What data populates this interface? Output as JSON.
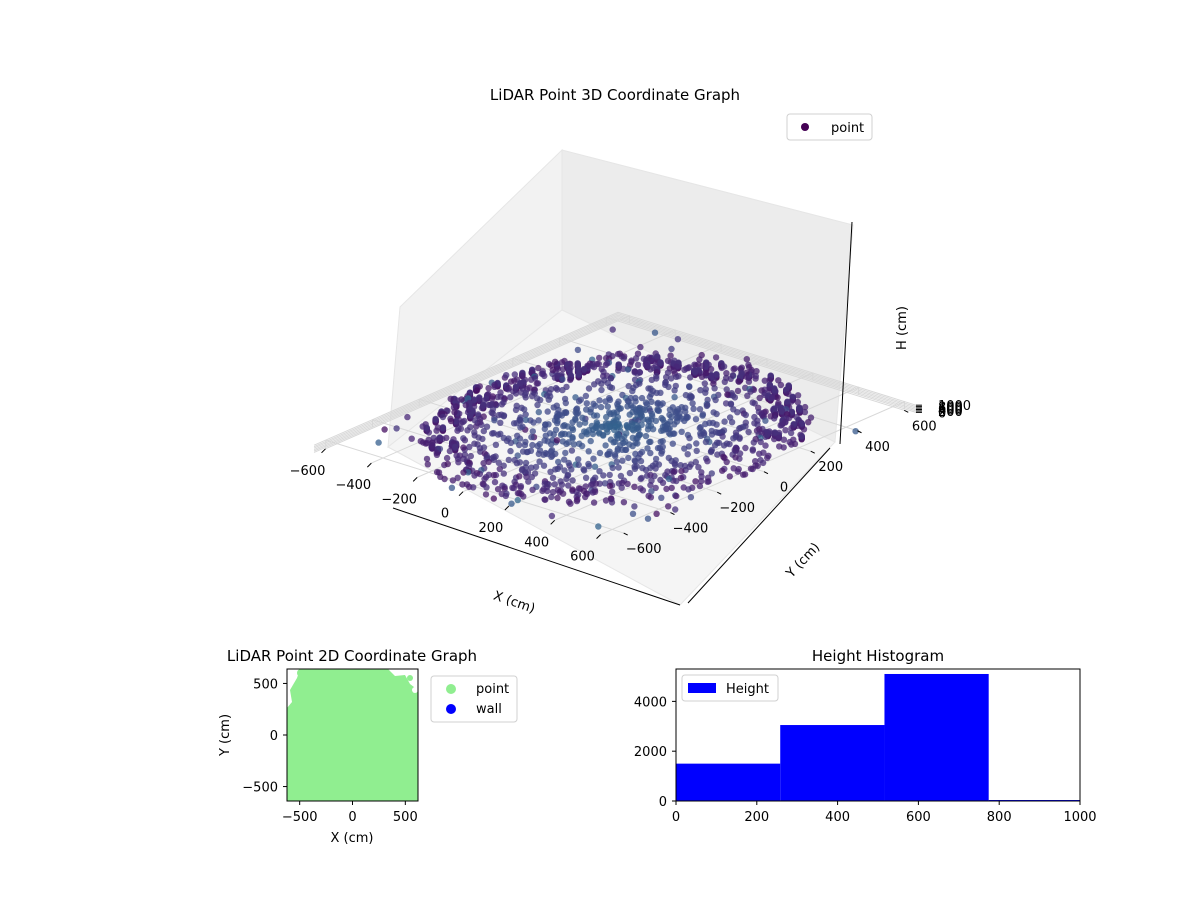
{
  "chart_data": [
    {
      "type": "scatter",
      "projection": "3d",
      "title": "LiDAR Point 3D Coordinate Graph",
      "xlabel": "X (cm)",
      "ylabel": "Y (cm)",
      "zlabel": "H (cm)",
      "xlim": [
        -650,
        650
      ],
      "ylim": [
        -650,
        650
      ],
      "zlim": [
        0,
        1000
      ],
      "z_inverted": true,
      "xticks": [
        -600,
        -400,
        -200,
        0,
        200,
        400,
        600
      ],
      "yticks": [
        -600,
        -400,
        -200,
        0,
        200,
        400,
        600
      ],
      "zticks": [
        0,
        200,
        400,
        600,
        800,
        1000
      ],
      "grid": true,
      "legend": {
        "position": "top-right",
        "entries": [
          "point"
        ]
      },
      "colormap": "viridis",
      "colormap_stops": [
        "#440154",
        "#482878",
        "#3e4a89",
        "#31688e",
        "#26828e",
        "#1f9e89",
        "#35b779"
      ],
      "series": [
        {
          "name": "point",
          "shape": "bowl-shaped point cloud: dense ring of points at radius ~450-600 cm forming a wall from H 0 to ~500 cm, floor points converging toward the center at H ~750 cm, sparse scattered outliers around the perimeter",
          "center": [
            0,
            0
          ],
          "ring_radius_range": [
            420,
            600
          ],
          "center_height": 750
        }
      ]
    },
    {
      "type": "scatter",
      "title": "LiDAR Point 2D Coordinate Graph",
      "xlabel": "X (cm)",
      "ylabel": "Y (cm)",
      "xlim": [
        -620,
        620
      ],
      "ylim": [
        -640,
        640
      ],
      "xticks": [
        -500,
        0,
        500
      ],
      "yticks": [
        -500,
        0,
        500
      ],
      "grid": false,
      "legend": {
        "position": "outside-right",
        "entries": [
          "point",
          "wall"
        ]
      },
      "series": [
        {
          "name": "point",
          "color": "#90ee90",
          "fill_region": "nearly the whole area, small gaps near the top-left and top-right edges"
        },
        {
          "name": "wall",
          "color": "#0000ff",
          "points": []
        }
      ]
    },
    {
      "type": "bar",
      "subtype": "histogram",
      "title": "Height Histogram",
      "xlabel": "",
      "ylabel": "",
      "xlim": [
        0,
        1000
      ],
      "ylim": [
        0,
        5300
      ],
      "xticks": [
        0,
        200,
        400,
        600,
        800,
        1000
      ],
      "yticks": [
        0,
        2000,
        4000
      ],
      "grid": false,
      "legend": {
        "position": "top-left",
        "entries": [
          "Height"
        ]
      },
      "series": [
        {
          "name": "Height",
          "color": "#0000ff",
          "bins": [
            0,
            258,
            516,
            774,
            1000
          ],
          "values": [
            1500,
            3050,
            5100,
            40
          ]
        }
      ]
    }
  ]
}
